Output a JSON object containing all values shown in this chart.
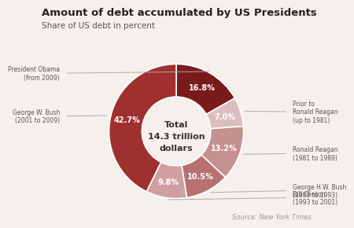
{
  "title": "Amount of debt accumulated by US Presidents",
  "subtitle": "Share of US debt in percent",
  "source": "Source: New York Times",
  "center_text_line1": "Total",
  "center_text_line2": "14.3 trillion",
  "center_text_line3": "dollars",
  "slices": [
    {
      "label": "President Obama\n(from 2009)",
      "pct": 16.8,
      "color": "#7a1a1a",
      "label_side": "left"
    },
    {
      "label": "Prior to\nRonald Reagan\n(up to 1981)",
      "pct": 7.0,
      "color": "#dbbdbd",
      "label_side": "right"
    },
    {
      "label": "Ronald Reagan\n(1981 to 1989)",
      "pct": 13.2,
      "color": "#c49090",
      "label_side": "right"
    },
    {
      "label": "George H.W. Bush\n(1989 to 1993)",
      "pct": 10.5,
      "color": "#b87070",
      "label_side": "right"
    },
    {
      "label": "Bill Clinton\n(1993 to 2001)",
      "pct": 9.8,
      "color": "#d0a0a0",
      "label_side": "right"
    },
    {
      "label": "George W. Bush\n(2001 to 2009)",
      "pct": 42.7,
      "color": "#a03030",
      "label_side": "left"
    }
  ],
  "wedge_label_color": "#ffffff",
  "outer_label_color": "#555555",
  "background_color": "#f5f0ec",
  "title_fontsize": 9.5,
  "subtitle_fontsize": 7.5,
  "source_fontsize": 6.0
}
